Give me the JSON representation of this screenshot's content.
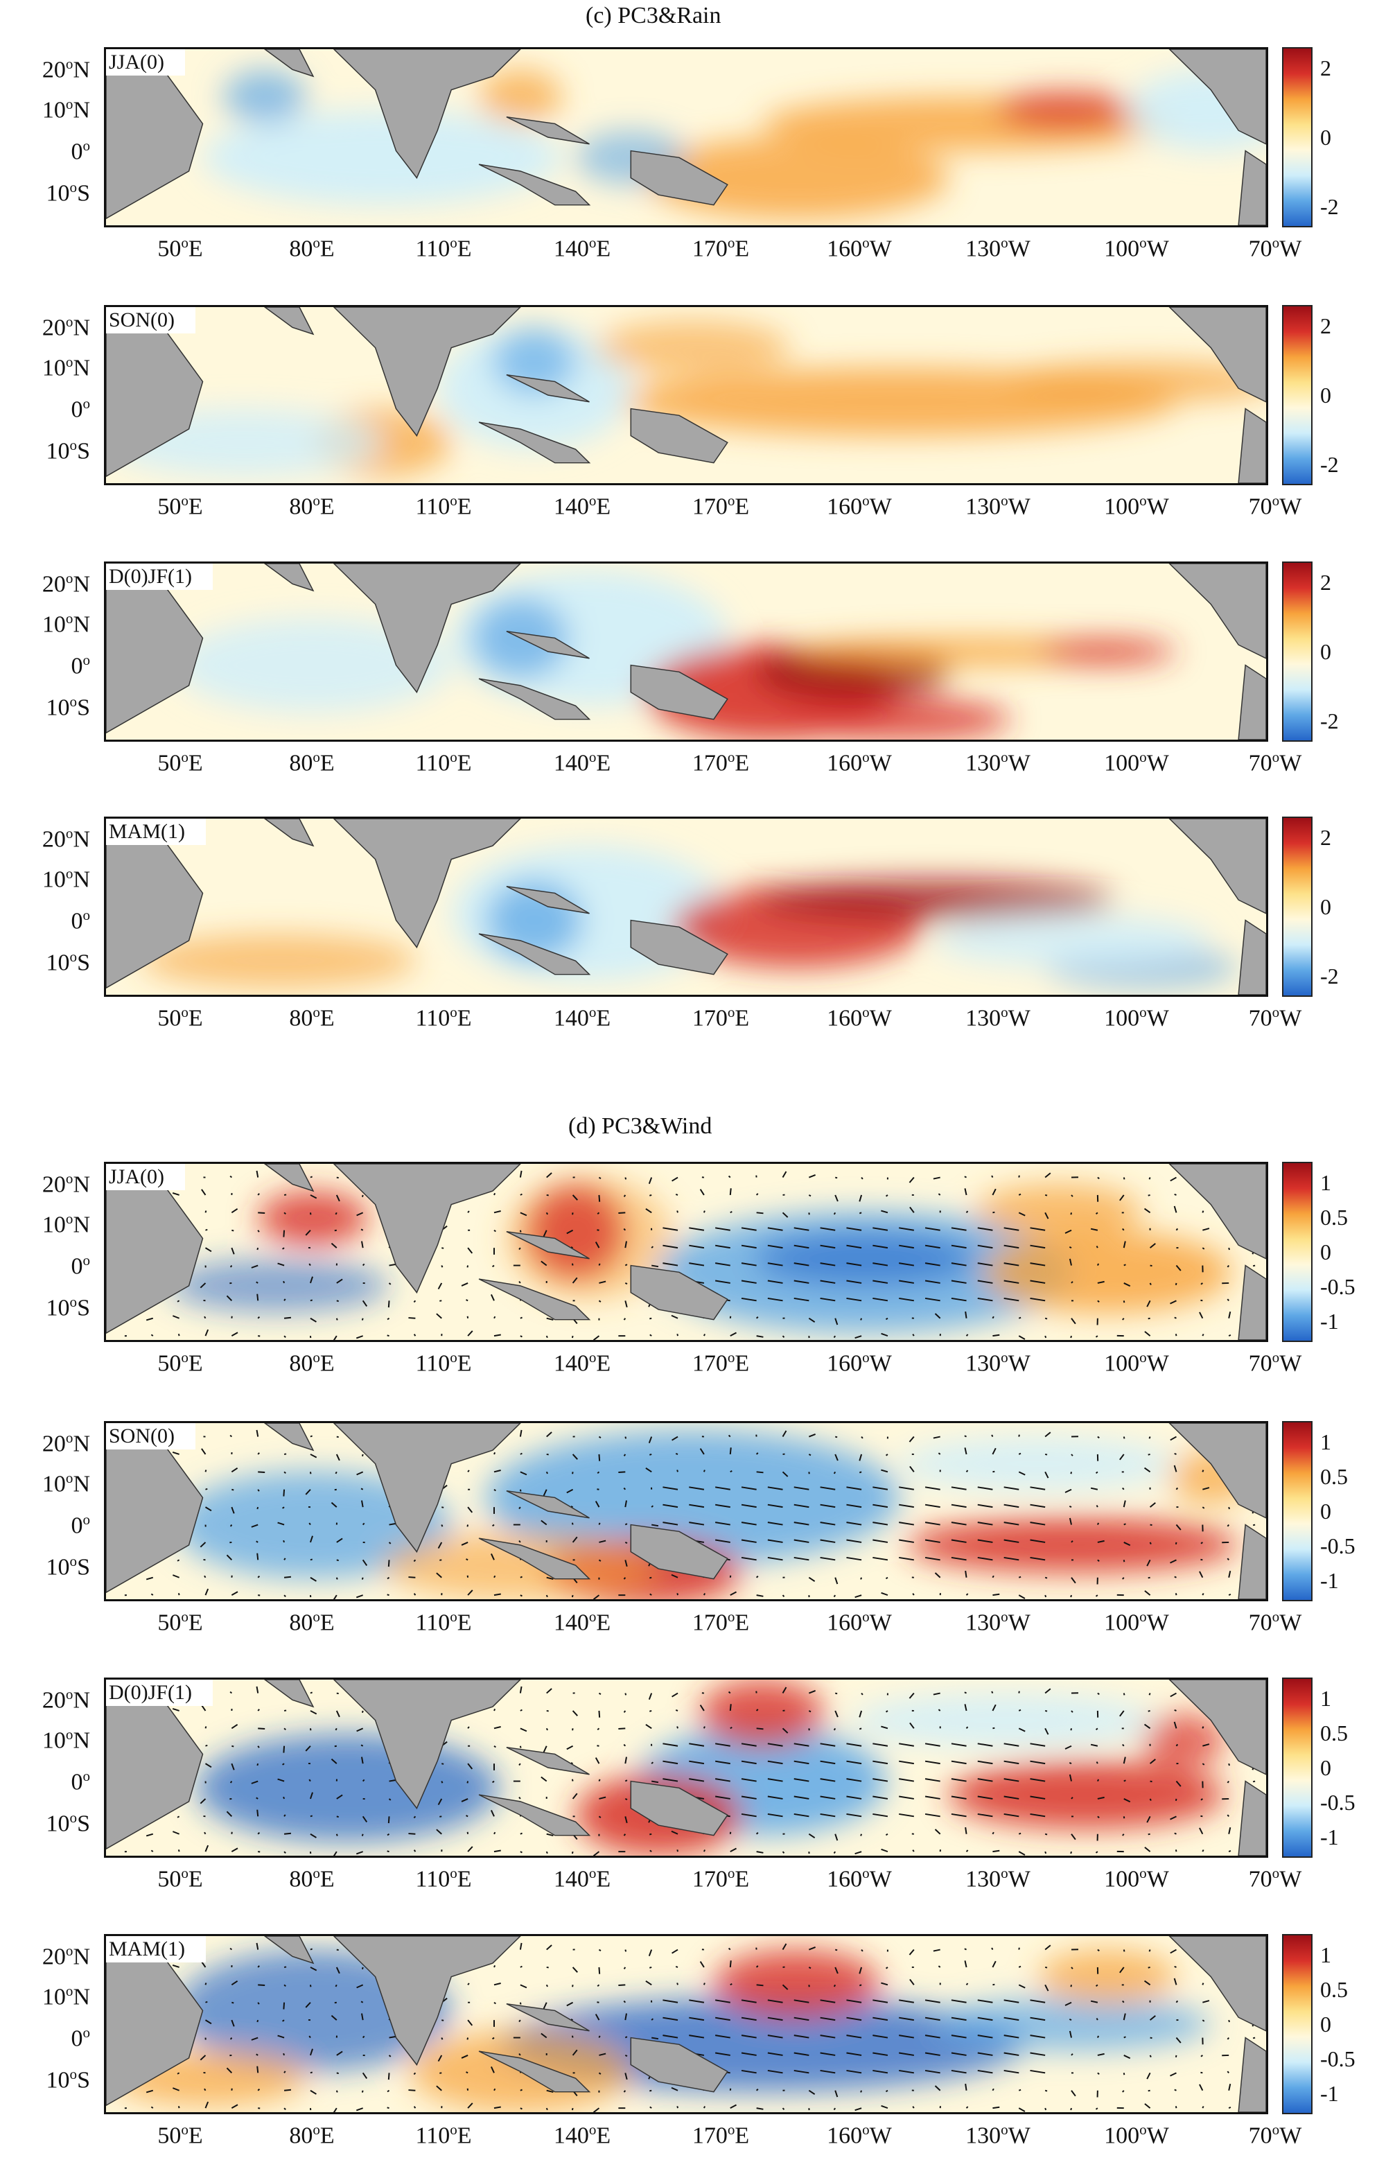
{
  "figure": {
    "sections": [
      {
        "id": "rain",
        "title": "(c)  PC3&Rain",
        "colorbar_ticks": [
          "2",
          "0",
          "-2"
        ],
        "panels": [
          {
            "season": "JJA(0)"
          },
          {
            "season": "SON(0)"
          },
          {
            "season": "D(0)JF(1)"
          },
          {
            "season": "MAM(1)"
          }
        ]
      },
      {
        "id": "wind",
        "title": "(d) PC3&Wind",
        "colorbar_ticks": [
          "1",
          "0.5",
          "0",
          "-0.5",
          "-1"
        ],
        "panels": [
          {
            "season": "JJA(0)"
          },
          {
            "season": "SON(0)"
          },
          {
            "season": "D(0)JF(1)"
          },
          {
            "season": "MAM(1)"
          }
        ]
      }
    ],
    "lat_labels": [
      {
        "num": "20",
        "deg": "o",
        "hem": "N"
      },
      {
        "num": "10",
        "deg": "o",
        "hem": "N"
      },
      {
        "num": "0",
        "deg": "o",
        "hem": ""
      },
      {
        "num": "10",
        "deg": "o",
        "hem": "S"
      }
    ],
    "lon_labels": [
      {
        "num": "50",
        "deg": "o",
        "hem": "E"
      },
      {
        "num": "80",
        "deg": "o",
        "hem": "E"
      },
      {
        "num": "110",
        "deg": "o",
        "hem": "E"
      },
      {
        "num": "140",
        "deg": "o",
        "hem": "E"
      },
      {
        "num": "170",
        "deg": "o",
        "hem": "E"
      },
      {
        "num": "160",
        "deg": "o",
        "hem": "W"
      },
      {
        "num": "130",
        "deg": "o",
        "hem": "W"
      },
      {
        "num": "100",
        "deg": "o",
        "hem": "W"
      },
      {
        "num": "70",
        "deg": "o",
        "hem": "W"
      }
    ],
    "colors": {
      "land": "#a6a6a6",
      "neutral": "#fff8dc",
      "light_blue": "#cfeefa",
      "mid_blue": "#5fa8e6",
      "dark_blue": "#2566c9",
      "yellow": "#fde28a",
      "orange": "#f7a33c",
      "red": "#d8312a",
      "dark_red": "#9c0f16",
      "vector": "#111111"
    }
  }
}
